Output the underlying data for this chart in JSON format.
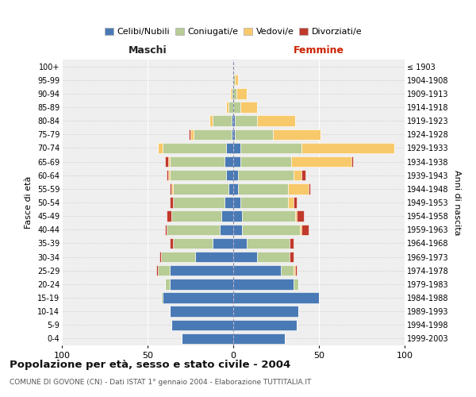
{
  "age_groups": [
    "0-4",
    "5-9",
    "10-14",
    "15-19",
    "20-24",
    "25-29",
    "30-34",
    "35-39",
    "40-44",
    "45-49",
    "50-54",
    "55-59",
    "60-64",
    "65-69",
    "70-74",
    "75-79",
    "80-84",
    "85-89",
    "90-94",
    "95-99",
    "100+"
  ],
  "birth_years": [
    "1999-2003",
    "1994-1998",
    "1989-1993",
    "1984-1988",
    "1979-1983",
    "1974-1978",
    "1969-1973",
    "1964-1968",
    "1959-1963",
    "1954-1958",
    "1949-1953",
    "1944-1948",
    "1939-1943",
    "1934-1938",
    "1929-1933",
    "1924-1928",
    "1919-1923",
    "1914-1918",
    "1909-1913",
    "1904-1908",
    "≤ 1903"
  ],
  "maschi": {
    "celibi": [
      30,
      36,
      37,
      41,
      37,
      37,
      22,
      12,
      8,
      7,
      5,
      3,
      4,
      5,
      4,
      1,
      1,
      0,
      0,
      0,
      0
    ],
    "coniugati": [
      0,
      0,
      0,
      1,
      3,
      7,
      20,
      23,
      31,
      29,
      30,
      32,
      33,
      32,
      37,
      22,
      11,
      3,
      1,
      0,
      0
    ],
    "vedovi": [
      0,
      0,
      0,
      0,
      0,
      0,
      0,
      0,
      0,
      0,
      0,
      1,
      1,
      1,
      3,
      2,
      2,
      1,
      1,
      0,
      0
    ],
    "divorziati": [
      0,
      0,
      0,
      0,
      0,
      1,
      1,
      2,
      1,
      3,
      2,
      1,
      1,
      2,
      0,
      1,
      0,
      0,
      0,
      0,
      0
    ]
  },
  "femmine": {
    "nubili": [
      30,
      37,
      38,
      50,
      35,
      28,
      14,
      8,
      5,
      5,
      4,
      3,
      3,
      4,
      4,
      1,
      1,
      0,
      0,
      0,
      0
    ],
    "coniugate": [
      0,
      0,
      0,
      0,
      3,
      7,
      19,
      25,
      34,
      31,
      28,
      29,
      32,
      30,
      36,
      22,
      13,
      4,
      2,
      1,
      0
    ],
    "vedove": [
      0,
      0,
      0,
      0,
      0,
      1,
      0,
      0,
      1,
      1,
      3,
      12,
      5,
      35,
      54,
      28,
      22,
      10,
      6,
      2,
      0
    ],
    "divorziate": [
      0,
      0,
      0,
      0,
      0,
      1,
      2,
      2,
      4,
      4,
      2,
      1,
      2,
      1,
      0,
      0,
      0,
      0,
      0,
      0,
      0
    ]
  },
  "colors": {
    "celibi": "#4a7ab5",
    "coniugati": "#b8cc96",
    "vedovi": "#f8c96a",
    "divorziati": "#c0392b"
  },
  "xlim": 100,
  "title": "Popolazione per età, sesso e stato civile - 2004",
  "subtitle": "COMUNE DI GOVONE (CN) - Dati ISTAT 1° gennaio 2004 - Elaborazione TUTTITALIA.IT",
  "ylabel_left": "Fasce di età",
  "ylabel_right": "Anni di nascita",
  "xlabel_left": "Maschi",
  "xlabel_right": "Femmine",
  "legend_labels": [
    "Celibi/Nubili",
    "Coniugati/e",
    "Vedovi/e",
    "Divorziati/e"
  ],
  "bg_color": "#ffffff",
  "plot_bg_color": "#efefef",
  "grid_color": "#ffffff"
}
